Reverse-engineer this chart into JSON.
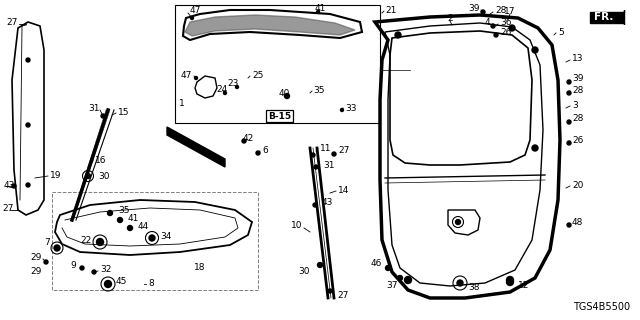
{
  "bg_color": "#ffffff",
  "diagram_code": "TGS4B5500",
  "fr_label": "FR.",
  "b15_label": "B-15",
  "label_fontsize": 6.5,
  "diagram_code_fontsize": 7
}
